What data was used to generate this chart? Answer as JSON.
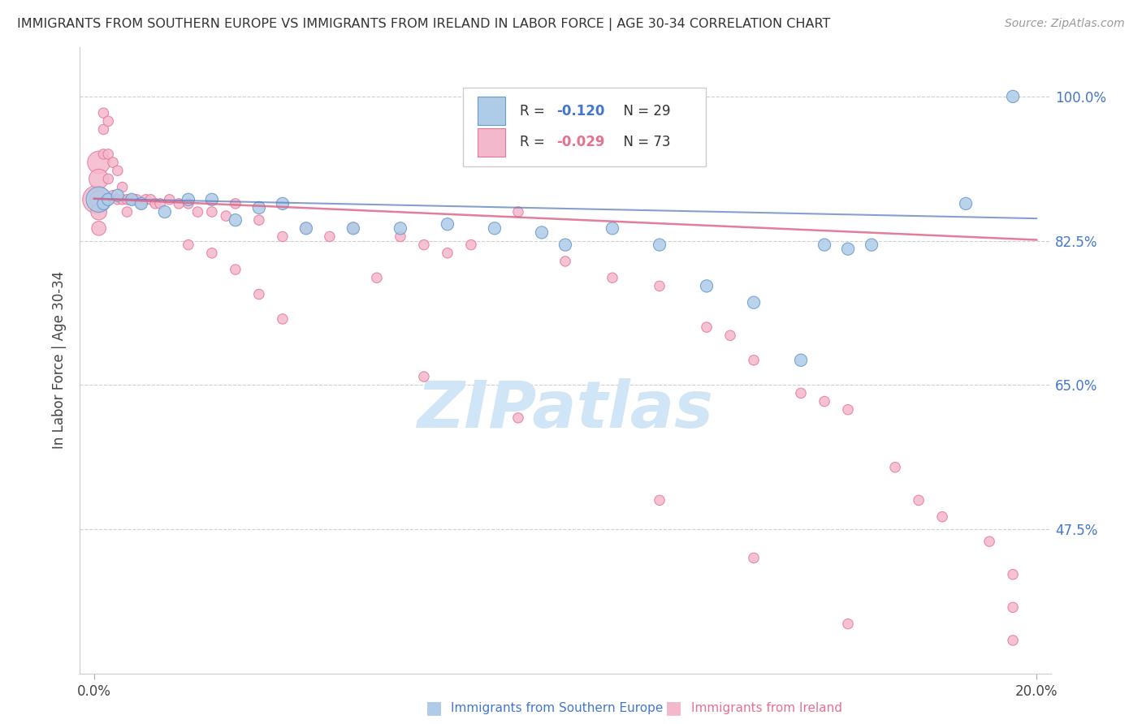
{
  "title": "IMMIGRANTS FROM SOUTHERN EUROPE VS IMMIGRANTS FROM IRELAND IN LABOR FORCE | AGE 30-34 CORRELATION CHART",
  "source": "Source: ZipAtlas.com",
  "ylabel": "In Labor Force | Age 30-34",
  "x_min": 0.0,
  "x_max": 0.2,
  "y_min": 0.3,
  "y_max": 1.06,
  "y_ticks": [
    1.0,
    0.825,
    0.65,
    0.475
  ],
  "y_tick_labels": [
    "100.0%",
    "82.5%",
    "65.0%",
    "47.5%"
  ],
  "x_tick_labels": [
    "0.0%",
    "20.0%"
  ],
  "legend_R1": "-0.120",
  "legend_N1": "29",
  "legend_R2": "-0.029",
  "legend_N2": "73",
  "series1_color": "#aecce8",
  "series2_color": "#f4b8cc",
  "series1_edge": "#6699cc",
  "series2_edge": "#e87898",
  "trendline1_color": "#5577bb",
  "trendline2_color": "#dd6688",
  "watermark_color": "#d0e5f5",
  "grid_color": "#bbbbbb",
  "series1_x": [
    0.001,
    0.002,
    0.003,
    0.005,
    0.008,
    0.01,
    0.015,
    0.02,
    0.025,
    0.03,
    0.035,
    0.04,
    0.045,
    0.055,
    0.065,
    0.075,
    0.085,
    0.095,
    0.1,
    0.11,
    0.12,
    0.13,
    0.14,
    0.15,
    0.155,
    0.16,
    0.165,
    0.185,
    0.195
  ],
  "series1_y": [
    0.875,
    0.87,
    0.875,
    0.88,
    0.875,
    0.87,
    0.86,
    0.875,
    0.875,
    0.85,
    0.865,
    0.87,
    0.84,
    0.84,
    0.84,
    0.845,
    0.84,
    0.835,
    0.82,
    0.84,
    0.82,
    0.77,
    0.75,
    0.68,
    0.82,
    0.815,
    0.82,
    0.87,
    1.0
  ],
  "series2_x": [
    0.0005,
    0.001,
    0.001,
    0.001,
    0.001,
    0.001,
    0.002,
    0.002,
    0.002,
    0.002,
    0.003,
    0.003,
    0.003,
    0.003,
    0.004,
    0.004,
    0.005,
    0.005,
    0.006,
    0.006,
    0.007,
    0.007,
    0.008,
    0.009,
    0.01,
    0.011,
    0.012,
    0.013,
    0.014,
    0.016,
    0.018,
    0.02,
    0.022,
    0.025,
    0.028,
    0.03,
    0.035,
    0.04,
    0.045,
    0.05,
    0.055,
    0.06,
    0.065,
    0.07,
    0.075,
    0.08,
    0.09,
    0.1,
    0.11,
    0.12,
    0.13,
    0.135,
    0.14,
    0.15,
    0.155,
    0.16,
    0.17,
    0.175,
    0.18,
    0.19,
    0.195,
    0.195,
    0.195,
    0.02,
    0.025,
    0.03,
    0.035,
    0.04,
    0.07,
    0.09,
    0.12,
    0.14,
    0.16
  ],
  "series2_y": [
    0.875,
    0.92,
    0.9,
    0.875,
    0.86,
    0.84,
    0.98,
    0.96,
    0.93,
    0.87,
    0.97,
    0.93,
    0.9,
    0.875,
    0.92,
    0.88,
    0.91,
    0.875,
    0.89,
    0.875,
    0.875,
    0.86,
    0.875,
    0.875,
    0.87,
    0.875,
    0.875,
    0.87,
    0.87,
    0.875,
    0.87,
    0.87,
    0.86,
    0.86,
    0.855,
    0.87,
    0.85,
    0.83,
    0.84,
    0.83,
    0.84,
    0.78,
    0.83,
    0.82,
    0.81,
    0.82,
    0.86,
    0.8,
    0.78,
    0.77,
    0.72,
    0.71,
    0.68,
    0.64,
    0.63,
    0.62,
    0.55,
    0.51,
    0.49,
    0.46,
    0.42,
    0.38,
    0.34,
    0.82,
    0.81,
    0.79,
    0.76,
    0.73,
    0.66,
    0.61,
    0.51,
    0.44,
    0.36
  ],
  "trendline1_x0": 0.0,
  "trendline1_x1": 0.2,
  "trendline1_y0": 0.876,
  "trendline1_y1": 0.852,
  "trendline2_x0": 0.0,
  "trendline2_x1": 0.2,
  "trendline2_y0": 0.876,
  "trendline2_y1": 0.826
}
